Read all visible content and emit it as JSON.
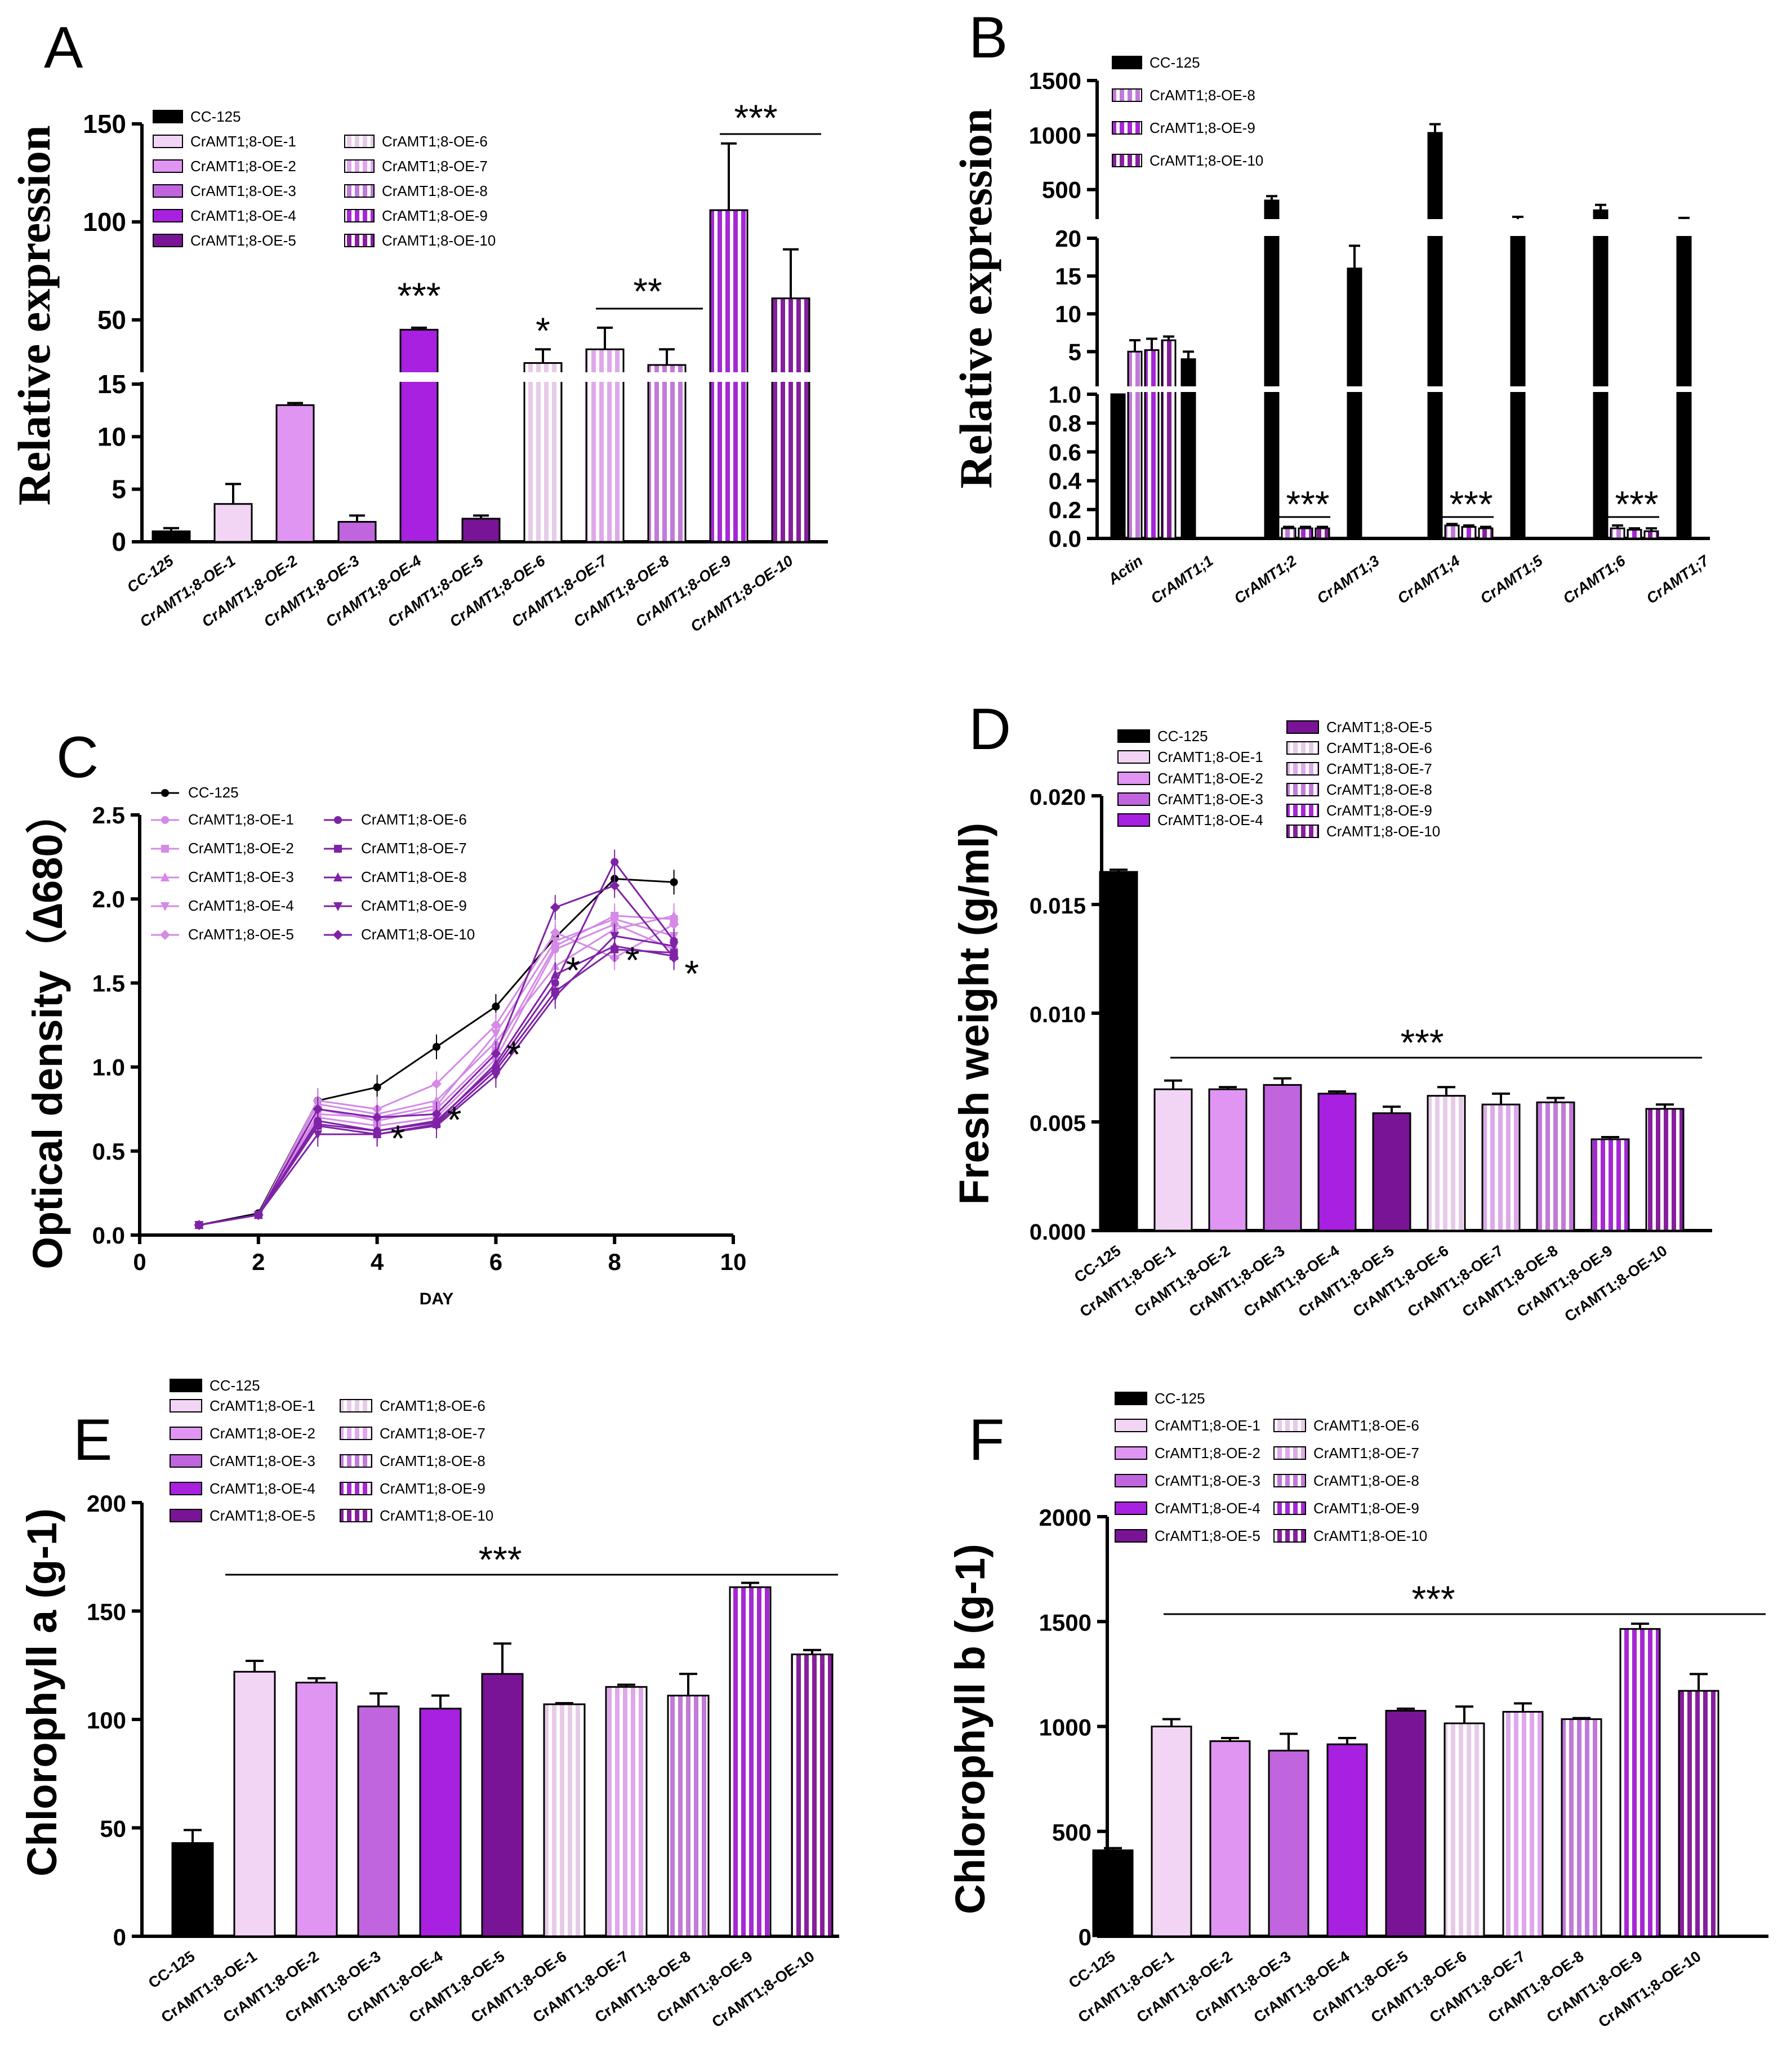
{
  "chart_data": [
    {
      "panel": "A",
      "type": "bar",
      "ylabel": "Relative expression",
      "y_axis_break": {
        "lower": [
          0,
          15
        ],
        "upper": [
          25,
          150
        ]
      },
      "yticks_lower": [
        0,
        5,
        10,
        15
      ],
      "yticks_upper": [
        50,
        100,
        150
      ],
      "categories": [
        "CC-125",
        "CrAMT1;8-OE-1",
        "CrAMT1;8-OE-2",
        "CrAMT1;8-OE-3",
        "CrAMT1;8-OE-4",
        "CrAMT1;8-OE-5",
        "CrAMT1;8-OE-6",
        "CrAMT1;8-OE-7",
        "CrAMT1;8-OE-8",
        "CrAMT1;8-OE-9",
        "CrAMT1;8-OE-10"
      ],
      "values": [
        1.0,
        3.6,
        13.0,
        1.9,
        45,
        2.2,
        28,
        35,
        27,
        106,
        61
      ],
      "errors": [
        0.3,
        1.9,
        0.2,
        0.6,
        1,
        0.3,
        7,
        11,
        8,
        34,
        25
      ],
      "legend": [
        "CC-125",
        "CrAMT1;8-OE-1",
        "CrAMT1;8-OE-2",
        "CrAMT1;8-OE-3",
        "CrAMT1;8-OE-4",
        "CrAMT1;8-OE-5",
        "CrAMT1;8-OE-6",
        "CrAMT1;8-OE-7",
        "CrAMT1;8-OE-8",
        "CrAMT1;8-OE-9",
        "CrAMT1;8-OE-10"
      ],
      "annotations": [
        {
          "text": "***",
          "over": [
            "CrAMT1;8-OE-4"
          ]
        },
        {
          "text": "*",
          "over": [
            "CrAMT1;8-OE-6"
          ]
        },
        {
          "text": "**",
          "over": [
            "CrAMT1;8-OE-7",
            "CrAMT1;8-OE-8"
          ]
        },
        {
          "text": "***",
          "over": [
            "CrAMT1;8-OE-9",
            "CrAMT1;8-OE-10"
          ]
        }
      ]
    },
    {
      "panel": "B",
      "type": "bar",
      "ylabel": "Relative expression",
      "y_axis_break": {
        "lower": [
          0,
          1.0
        ],
        "middle": [
          1,
          20
        ],
        "upper": [
          250,
          1500
        ]
      },
      "yticks_lower": [
        0.0,
        0.2,
        0.4,
        0.6,
        0.8,
        1.0
      ],
      "yticks_middle": [
        5,
        10,
        15,
        20
      ],
      "yticks_upper": [
        500,
        1000,
        1500
      ],
      "categories": [
        "Actin",
        "CrAMT1;1",
        "CrAMT1;2",
        "CrAMT1;3",
        "CrAMT1;4",
        "CrAMT1;5",
        "CrAMT1;6",
        "CrAMT1;7"
      ],
      "series": [
        {
          "name": "CC-125",
          "values": [
            1.0,
            4.0,
            400,
            16,
            1020,
            210,
            310,
            215
          ],
          "errors": [
            0,
            1,
            40,
            3,
            80,
            40,
            50,
            25
          ]
        },
        {
          "name": "CrAMT1;8-OE-8",
          "values": [
            5.0,
            null,
            0.07,
            null,
            0.09,
            null,
            0.07,
            null
          ],
          "errors": [
            1.5,
            null,
            0.01,
            null,
            0.01,
            null,
            0.02,
            null
          ]
        },
        {
          "name": "CrAMT1;8-OE-9",
          "values": [
            5.2,
            null,
            0.07,
            null,
            0.08,
            null,
            0.06,
            null
          ],
          "errors": [
            1.5,
            null,
            0.01,
            null,
            0.01,
            null,
            0.01,
            null
          ]
        },
        {
          "name": "CrAMT1;8-OE-10",
          "values": [
            6.5,
            null,
            0.07,
            null,
            0.07,
            null,
            0.05,
            null
          ],
          "errors": [
            0.5,
            null,
            0.01,
            null,
            0.01,
            null,
            0.02,
            null
          ]
        }
      ],
      "annotations": [
        {
          "text": "***",
          "over": [
            "CrAMT1;2"
          ]
        },
        {
          "text": "***",
          "over": [
            "CrAMT1;4"
          ]
        },
        {
          "text": "***",
          "over": [
            "CrAMT1;6"
          ]
        }
      ]
    },
    {
      "panel": "C",
      "type": "line",
      "xlabel": "DAY",
      "ylabel": "Optical density（∆680）",
      "xlim": [
        0,
        10
      ],
      "ylim": [
        0,
        2.5
      ],
      "xticks": [
        0,
        2,
        4,
        6,
        8,
        10
      ],
      "yticks": [
        0.0,
        0.5,
        1.0,
        1.5,
        2.0,
        2.5
      ],
      "x": [
        1,
        2,
        3,
        4,
        5,
        6,
        7,
        8,
        9
      ],
      "series": [
        {
          "name": "CC-125",
          "values": [
            0.06,
            0.13,
            0.8,
            0.88,
            1.12,
            1.36,
            1.77,
            2.12,
            2.1
          ]
        },
        {
          "name": "CrAMT1;8-OE-1",
          "values": [
            0.06,
            0.12,
            0.7,
            0.65,
            0.7,
            1.05,
            1.7,
            1.85,
            1.7
          ]
        },
        {
          "name": "CrAMT1;8-OE-2",
          "values": [
            0.06,
            0.12,
            0.75,
            0.68,
            0.75,
            1.1,
            1.72,
            1.9,
            1.88
          ]
        },
        {
          "name": "CrAMT1;8-OE-3",
          "values": [
            0.06,
            0.12,
            0.78,
            0.72,
            0.8,
            1.15,
            1.6,
            1.82,
            1.9
          ]
        },
        {
          "name": "CrAMT1;8-OE-4",
          "values": [
            0.06,
            0.12,
            0.72,
            0.7,
            0.77,
            1.2,
            1.75,
            1.88,
            1.78
          ]
        },
        {
          "name": "CrAMT1;8-OE-5",
          "values": [
            0.06,
            0.12,
            0.8,
            0.75,
            0.9,
            1.25,
            1.8,
            1.65,
            1.85
          ]
        },
        {
          "name": "CrAMT1;8-OE-6",
          "values": [
            0.06,
            0.12,
            0.68,
            0.62,
            0.68,
            1.0,
            1.5,
            2.22,
            1.75
          ]
        },
        {
          "name": "CrAMT1;8-OE-7",
          "values": [
            0.06,
            0.12,
            0.65,
            0.6,
            0.66,
            0.98,
            1.45,
            1.7,
            1.68
          ]
        },
        {
          "name": "CrAMT1;8-OE-8",
          "values": [
            0.06,
            0.12,
            0.66,
            0.62,
            0.67,
            1.02,
            1.55,
            1.72,
            1.66
          ]
        },
        {
          "name": "CrAMT1;8-OE-9",
          "values": [
            0.06,
            0.12,
            0.6,
            0.6,
            0.65,
            0.95,
            1.42,
            1.78,
            1.72
          ]
        },
        {
          "name": "CrAMT1;8-OE-10",
          "values": [
            0.06,
            0.12,
            0.75,
            0.7,
            0.72,
            1.08,
            1.95,
            2.08,
            1.65
          ]
        }
      ],
      "annotations": [
        {
          "text": "*",
          "x": 4
        },
        {
          "text": "*",
          "x": 5
        },
        {
          "text": "*",
          "x": 6
        },
        {
          "text": "*",
          "x": 7
        },
        {
          "text": "*",
          "x": 8
        },
        {
          "text": "*",
          "x": 9
        }
      ]
    },
    {
      "panel": "D",
      "type": "bar",
      "ylabel": "Fresh weight (g/ml)",
      "ylim": [
        0,
        0.02
      ],
      "yticks": [
        0.0,
        0.005,
        0.01,
        0.015,
        0.02
      ],
      "categories": [
        "CC-125",
        "CrAMT1;8-OE-1",
        "CrAMT1;8-OE-2",
        "CrAMT1;8-OE-3",
        "CrAMT1;8-OE-4",
        "CrAMT1;8-OE-5",
        "CrAMT1;8-OE-6",
        "CrAMT1;8-OE-7",
        "CrAMT1;8-OE-8",
        "CrAMT1;8-OE-9",
        "CrAMT1;8-OE-10"
      ],
      "values": [
        0.0165,
        0.0065,
        0.0065,
        0.0067,
        0.0063,
        0.0054,
        0.0062,
        0.0058,
        0.0059,
        0.0042,
        0.0056
      ],
      "errors": [
        0.0001,
        0.0004,
        0.0001,
        0.0003,
        0.0001,
        0.0003,
        0.0004,
        0.0005,
        0.0002,
        0.0001,
        0.0002
      ],
      "annotations": [
        {
          "text": "***",
          "over": [
            "CrAMT1;8-OE-1",
            "CrAMT1;8-OE-10"
          ]
        }
      ]
    },
    {
      "panel": "E",
      "type": "bar",
      "ylabel": "Chlorophyll a (g-1)",
      "ylim": [
        0,
        200
      ],
      "yticks": [
        0,
        50,
        100,
        150,
        200
      ],
      "categories": [
        "CC-125",
        "CrAMT1;8-OE-1",
        "CrAMT1;8-OE-2",
        "CrAMT1;8-OE-3",
        "CrAMT1;8-OE-4",
        "CrAMT1;8-OE-5",
        "CrAMT1;8-OE-6",
        "CrAMT1;8-OE-7",
        "CrAMT1;8-OE-8",
        "CrAMT1;8-OE-9",
        "CrAMT1;8-OE-10"
      ],
      "values": [
        43,
        122,
        117,
        106,
        105,
        121,
        107,
        115,
        111,
        161,
        130
      ],
      "errors": [
        6,
        5,
        2,
        6,
        6,
        14,
        0.5,
        1,
        10,
        2,
        2
      ],
      "annotations": [
        {
          "text": "***",
          "over": [
            "CrAMT1;8-OE-1",
            "CrAMT1;8-OE-10"
          ]
        }
      ]
    },
    {
      "panel": "F",
      "type": "bar",
      "ylabel": "Chlorophyll b (g-1)",
      "ylim": [
        0,
        2000
      ],
      "yticks": [
        0,
        500,
        1000,
        1500,
        2000
      ],
      "categories": [
        "CC-125",
        "CrAMT1;8-OE-1",
        "CrAMT1;8-OE-2",
        "CrAMT1;8-OE-3",
        "CrAMT1;8-OE-4",
        "CrAMT1;8-OE-5",
        "CrAMT1;8-OE-6",
        "CrAMT1;8-OE-7",
        "CrAMT1;8-OE-8",
        "CrAMT1;8-OE-9",
        "CrAMT1;8-OE-10"
      ],
      "values": [
        410,
        1000,
        930,
        885,
        915,
        1075,
        1015,
        1070,
        1035,
        1465,
        1170
      ],
      "errors": [
        10,
        35,
        15,
        80,
        30,
        10,
        80,
        40,
        5,
        25,
        80
      ],
      "annotations": [
        {
          "text": "***",
          "over": [
            "CrAMT1;8-OE-1",
            "CrAMT1;8-OE-10"
          ]
        }
      ]
    }
  ],
  "colors": {
    "cc125": "#000000",
    "oe1": "#f2d5f5",
    "oe2": "#e095f2",
    "oe3": "#c065de",
    "oe4": "#a820e0",
    "oe5": "#7a1496",
    "oe6": "#e6cbe8",
    "oe7": "#dea8ea",
    "oe8": "#c07ad8",
    "oe9": "#a528d4",
    "oe10": "#861f9c",
    "line_light": "#d48ae6",
    "line_dark": "#7e22a6"
  }
}
